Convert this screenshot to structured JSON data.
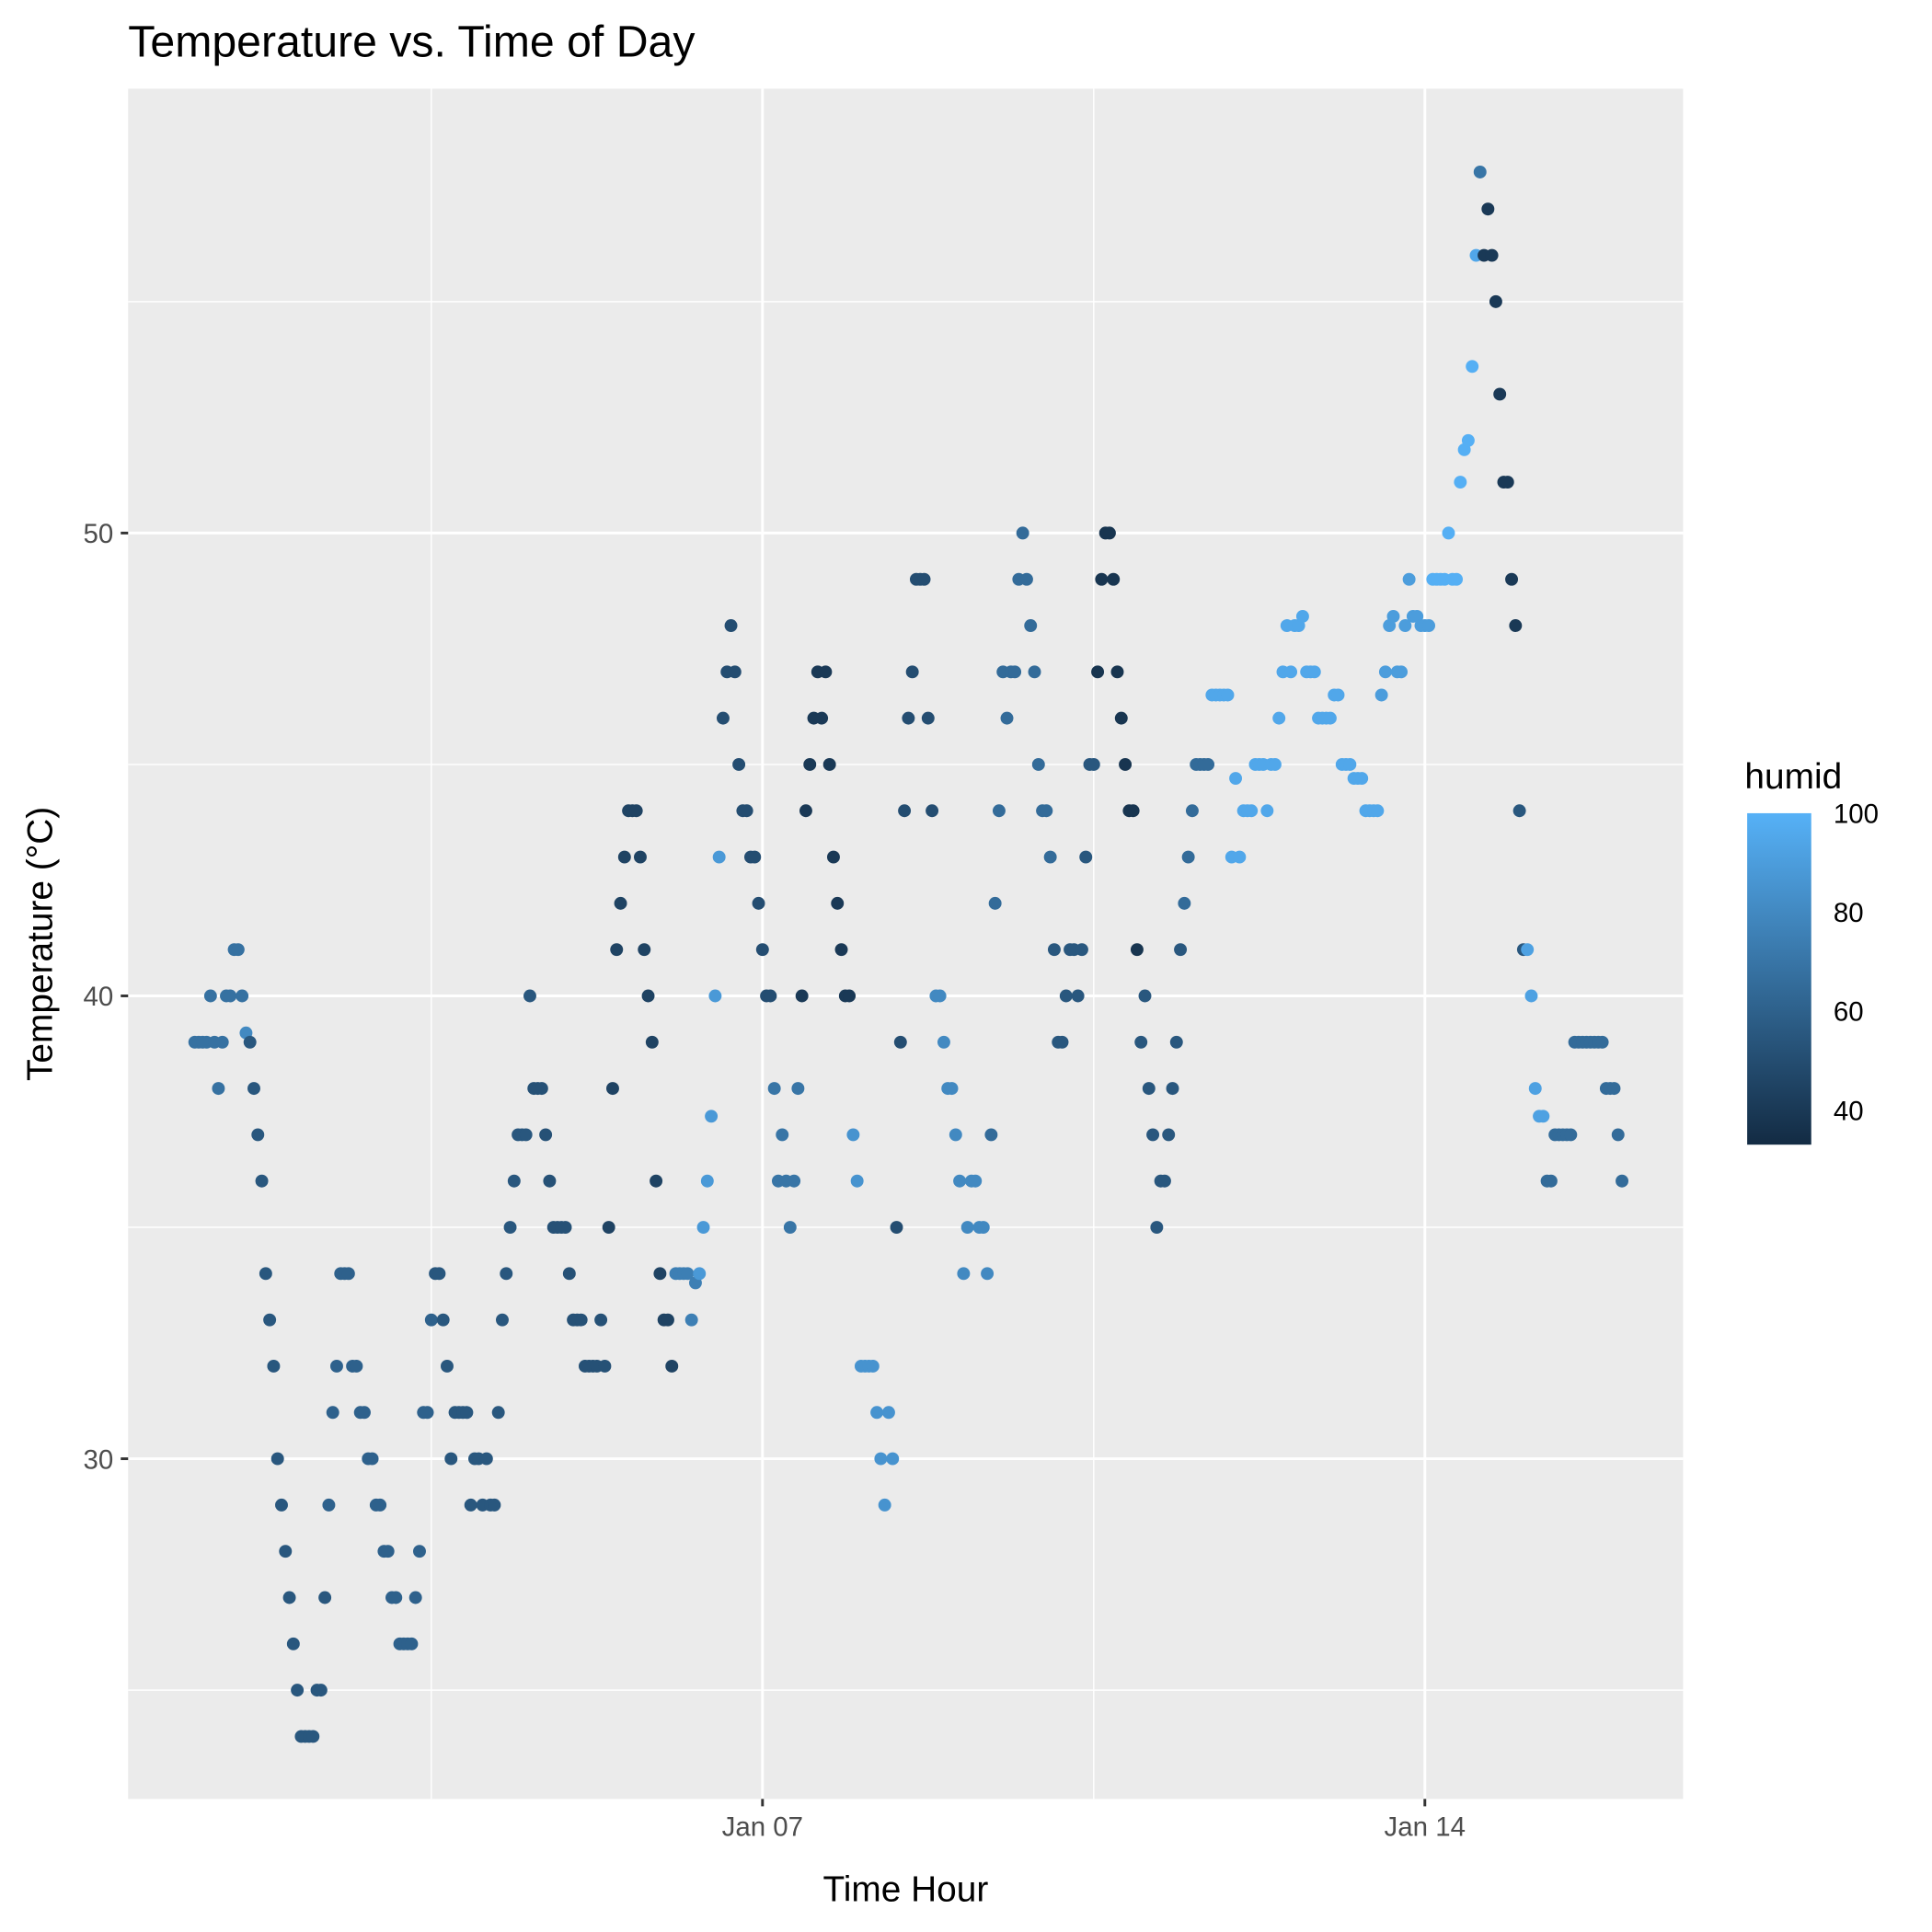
{
  "chart_data": {
    "type": "scatter",
    "title": "Temperature vs. Time of Day",
    "x_label": "Time Hour",
    "y_label": "Temperature (°C)",
    "color_label": "humid",
    "grid": true,
    "xlim": [
      -16.9,
      377.5
    ],
    "xticks": [
      {
        "value": 144,
        "label": "Jan 07"
      },
      {
        "value": 312,
        "label": "Jan 14"
      }
    ],
    "x_minor_ticks": [
      60,
      228
    ],
    "ylim": [
      22.65,
      59.6
    ],
    "yticks": [
      30,
      40,
      50
    ],
    "y_minor_ticks": [
      25,
      35,
      45,
      55
    ],
    "color_scale": {
      "low": "#132B43",
      "high": "#56B1F7",
      "limits": [
        33,
        100
      ],
      "ticks": [
        40,
        60,
        80,
        100
      ]
    },
    "x": [
      0,
      1,
      2,
      3,
      4,
      5,
      6,
      7,
      8,
      9,
      10,
      11,
      12,
      13,
      14,
      15,
      16,
      17,
      18,
      19,
      20,
      21,
      22,
      23,
      24,
      25,
      26,
      27,
      28,
      29,
      30,
      31,
      32,
      33,
      34,
      35,
      36,
      37,
      38,
      39,
      40,
      41,
      42,
      43,
      44,
      45,
      46,
      47,
      48,
      49,
      50,
      51,
      52,
      53,
      54,
      55,
      56,
      57,
      58,
      59,
      60,
      61,
      62,
      63,
      64,
      65,
      66,
      67,
      68,
      69,
      70,
      71,
      72,
      73,
      74,
      75,
      76,
      77,
      78,
      79,
      80,
      81,
      82,
      83,
      84,
      85,
      86,
      87,
      88,
      89,
      90,
      91,
      92,
      93,
      94,
      95,
      96,
      97,
      98,
      99,
      100,
      101,
      102,
      103,
      104,
      105,
      106,
      107,
      108,
      109,
      110,
      111,
      112,
      113,
      114,
      115,
      116,
      117,
      118,
      119,
      120,
      121,
      122,
      123,
      124,
      125,
      126,
      127,
      128,
      129,
      130,
      131,
      132,
      133,
      134,
      135,
      136,
      137,
      138,
      139,
      140,
      141,
      142,
      143,
      144,
      145,
      146,
      147,
      148,
      149,
      150,
      151,
      152,
      153,
      154,
      155,
      156,
      157,
      158,
      159,
      160,
      161,
      162,
      163,
      164,
      165,
      166,
      167,
      168,
      169,
      170,
      171,
      172,
      173,
      174,
      175,
      176,
      177,
      178,
      179,
      180,
      181,
      182,
      183,
      184,
      185,
      186,
      187,
      188,
      189,
      190,
      191,
      192,
      193,
      194,
      195,
      196,
      197,
      198,
      199,
      200,
      201,
      202,
      203,
      204,
      205,
      206,
      207,
      208,
      209,
      210,
      211,
      212,
      213,
      214,
      215,
      216,
      217,
      218,
      219,
      220,
      221,
      222,
      223,
      224,
      225,
      226,
      227,
      228,
      229,
      230,
      231,
      232,
      233,
      234,
      235,
      236,
      237,
      238,
      239,
      240,
      241,
      242,
      243,
      244,
      245,
      246,
      247,
      248,
      249,
      250,
      251,
      252,
      253,
      254,
      255,
      256,
      257,
      258,
      259,
      260,
      261,
      262,
      263,
      264,
      265,
      266,
      267,
      268,
      269,
      270,
      271,
      272,
      273,
      274,
      275,
      276,
      277,
      278,
      279,
      280,
      281,
      282,
      283,
      284,
      285,
      286,
      287,
      288,
      289,
      290,
      291,
      292,
      293,
      294,
      295,
      296,
      297,
      298,
      299,
      300,
      301,
      302,
      303,
      304,
      305,
      306,
      307,
      308,
      309,
      310,
      311,
      312,
      313,
      314,
      315,
      316,
      317,
      318,
      319,
      320,
      321,
      322,
      323,
      324,
      325,
      326,
      327,
      328,
      329,
      330,
      331,
      332,
      333,
      334,
      335,
      336,
      337,
      338,
      339,
      340,
      341,
      342,
      343,
      344,
      345,
      346,
      347,
      348,
      349,
      350,
      351,
      352,
      353,
      354,
      355,
      356,
      357,
      358,
      359,
      360,
      361,
      362
    ],
    "y": [
      39,
      39,
      39,
      39,
      40,
      39,
      38,
      39,
      40,
      40,
      41,
      41,
      40,
      39.2,
      39,
      38,
      37,
      36,
      34,
      33,
      32,
      30,
      29,
      28,
      27,
      26,
      25,
      24,
      24,
      24,
      24,
      25,
      25,
      27,
      29,
      31,
      32,
      34,
      34,
      34,
      32,
      32,
      31,
      31,
      30,
      30,
      29,
      29,
      28,
      28,
      27,
      27,
      26,
      26,
      26,
      26,
      27,
      28,
      31,
      31,
      33,
      34,
      34,
      33,
      32,
      30,
      31,
      31,
      31,
      31,
      29,
      30,
      30,
      29,
      30,
      29,
      29,
      31,
      33,
      34,
      35,
      36,
      37,
      37,
      37,
      40,
      38,
      38,
      38,
      37,
      36,
      35,
      35,
      35,
      35,
      34,
      33,
      33,
      33,
      32,
      32,
      32,
      32,
      33,
      32,
      35,
      38,
      41,
      42,
      43,
      44,
      44,
      44,
      43,
      41,
      40,
      39,
      36,
      34,
      33,
      33,
      32,
      34,
      34,
      34,
      34,
      33,
      33.8,
      34,
      35,
      36,
      37.4,
      40,
      43,
      46,
      47,
      48,
      47,
      45,
      44,
      44,
      43,
      43,
      42,
      41,
      40,
      40,
      38,
      36,
      37,
      36,
      35,
      36,
      38,
      40,
      44,
      45,
      46,
      47,
      46,
      47,
      45,
      43,
      42,
      41,
      40,
      40,
      37,
      36,
      32,
      32,
      32,
      32,
      31,
      30,
      29,
      31,
      30,
      35,
      39,
      44,
      46,
      47,
      49,
      49,
      49,
      46,
      44,
      40,
      40,
      39,
      38,
      38,
      37,
      36,
      34,
      35,
      36,
      36,
      35,
      35,
      34,
      37,
      42,
      44,
      47,
      46,
      47,
      47,
      49,
      50,
      49,
      48,
      47,
      45,
      44,
      44,
      43,
      41,
      39,
      39,
      40,
      41,
      41,
      40,
      41,
      43,
      45,
      45,
      47,
      49,
      50,
      50,
      49,
      47,
      46,
      45,
      44,
      44,
      41,
      39,
      40,
      38,
      37,
      35,
      36,
      36,
      37,
      38,
      39,
      41,
      42,
      43,
      44,
      45,
      45,
      45,
      45,
      46.5,
      46.5,
      46.5,
      46.5,
      46.5,
      43,
      44.7,
      43,
      44,
      44,
      44,
      45,
      45,
      45,
      44,
      45,
      45,
      46,
      47,
      48,
      47,
      48,
      48,
      48.2,
      47,
      47,
      47,
      46,
      46,
      46,
      46,
      46.5,
      46.5,
      45,
      45,
      45,
      44.7,
      44.7,
      44.7,
      44,
      44,
      44,
      44,
      46.5,
      47,
      48,
      48.2,
      47,
      47,
      48,
      49,
      48.2,
      48.2,
      48,
      48,
      48,
      49,
      49,
      49,
      49,
      50,
      49,
      49,
      51.1,
      51.8,
      52,
      53.6,
      56,
      57.8,
      56,
      57,
      56,
      55,
      53,
      51.1,
      51.1,
      49,
      48,
      44,
      41,
      41,
      40,
      38,
      37.4,
      37.4,
      36,
      36,
      37,
      37,
      37,
      37,
      37,
      39,
      39,
      39,
      39,
      39,
      39,
      39,
      39,
      38,
      38,
      38,
      37,
      36
    ],
    "humid": [
      68,
      68,
      68,
      68,
      68,
      68,
      68,
      68,
      68,
      68,
      68,
      68,
      68,
      80,
      55,
      55,
      55,
      55,
      55,
      55,
      55,
      55,
      55,
      55,
      55,
      55,
      55,
      55,
      55,
      55,
      55,
      55,
      55,
      55,
      60,
      60,
      60,
      60,
      60,
      60,
      60,
      60,
      60,
      60,
      60,
      60,
      60,
      60,
      60,
      60,
      60,
      60,
      60,
      60,
      60,
      60,
      60,
      60,
      60,
      60,
      60,
      55,
      55,
      55,
      55,
      55,
      55,
      55,
      55,
      55,
      55,
      55,
      55,
      55,
      55,
      55,
      55,
      55,
      55,
      55,
      55,
      55,
      55,
      55,
      55,
      55,
      52,
      52,
      52,
      52,
      52,
      52,
      52,
      52,
      52,
      52,
      52,
      52,
      52,
      52,
      52,
      52,
      52,
      52,
      52,
      45,
      45,
      45,
      45,
      45,
      45,
      45,
      45,
      45,
      45,
      45,
      45,
      45,
      45,
      45,
      45,
      45,
      75,
      75,
      75,
      75,
      75,
      75,
      88,
      88,
      88,
      88,
      88,
      88,
      50,
      50,
      50,
      50,
      50,
      50,
      50,
      50,
      50,
      50,
      50,
      50,
      50,
      70,
      70,
      70,
      70,
      70,
      70,
      70,
      40,
      40,
      40,
      40,
      40,
      40,
      40,
      40,
      40,
      40,
      40,
      40,
      40,
      85,
      85,
      85,
      85,
      85,
      85,
      85,
      85,
      85,
      85,
      85,
      50,
      50,
      50,
      50,
      50,
      50,
      50,
      50,
      50,
      50,
      80,
      80,
      80,
      80,
      80,
      80,
      80,
      80,
      80,
      80,
      80,
      80,
      80,
      80,
      65,
      65,
      65,
      65,
      65,
      65,
      65,
      65,
      65,
      65,
      65,
      65,
      65,
      65,
      65,
      65,
      55,
      55,
      55,
      55,
      55,
      55,
      55,
      55,
      55,
      55,
      55,
      38,
      38,
      38,
      38,
      38,
      38,
      38,
      38,
      38,
      38,
      38,
      55,
      55,
      55,
      55,
      55,
      55,
      55,
      55,
      55,
      55,
      55,
      65,
      65,
      65,
      65,
      65,
      65,
      65,
      95,
      95,
      95,
      95,
      95,
      95,
      95,
      95,
      95,
      95,
      95,
      95,
      95,
      95,
      95,
      95,
      95,
      95,
      95,
      95,
      95,
      95,
      95,
      95,
      95,
      95,
      95,
      95,
      95,
      95,
      95,
      95,
      95,
      95,
      95,
      95,
      95,
      95,
      95,
      95,
      95,
      95,
      95,
      90,
      90,
      90,
      90,
      90,
      90,
      90,
      90,
      90,
      90,
      90,
      90,
      90,
      99,
      99,
      99,
      99,
      99,
      99,
      99,
      99,
      99,
      99,
      99,
      95,
      70,
      40,
      40,
      40,
      40,
      40,
      40,
      40,
      40,
      40,
      55,
      55,
      92,
      92,
      92,
      92,
      92,
      65,
      65,
      65,
      65,
      65,
      65,
      65,
      65,
      65,
      65,
      65,
      65,
      65,
      65,
      65,
      65,
      65,
      65,
      65,
      65
    ]
  }
}
